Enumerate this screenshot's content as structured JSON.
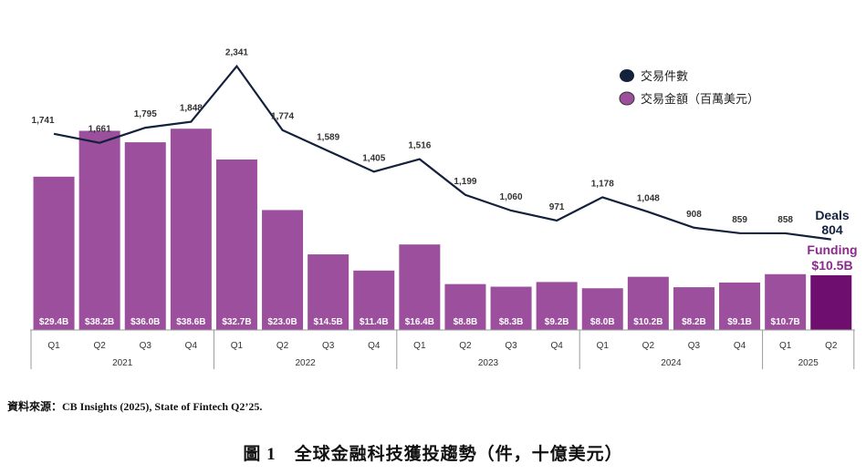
{
  "chart_data": {
    "type": "bar+line",
    "legend": {
      "position": "top-right",
      "items": [
        {
          "label": "交易件數",
          "color": "#14213d"
        },
        {
          "label": "交易金額（百萬美元）",
          "color": "#9b4f9d"
        }
      ]
    },
    "years": [
      "2021",
      "2022",
      "2023",
      "2024",
      "2025"
    ],
    "categories": [
      "Q1",
      "Q2",
      "Q3",
      "Q4",
      "Q1",
      "Q2",
      "Q3",
      "Q4",
      "Q1",
      "Q2",
      "Q3",
      "Q4",
      "Q1",
      "Q2",
      "Q3",
      "Q4",
      "Q1",
      "Q2"
    ],
    "category_years": [
      "2021",
      "2021",
      "2021",
      "2021",
      "2022",
      "2022",
      "2022",
      "2022",
      "2023",
      "2023",
      "2023",
      "2023",
      "2024",
      "2024",
      "2024",
      "2024",
      "2025",
      "2025"
    ],
    "series": [
      {
        "name": "交易金額（百萬美元）",
        "type": "bar",
        "color": "#9b4f9d",
        "highlight_color": "#6e0f6f",
        "values": [
          29.4,
          38.2,
          36.0,
          38.6,
          32.7,
          23.0,
          14.5,
          11.4,
          16.4,
          8.8,
          8.3,
          9.2,
          8.0,
          10.2,
          8.2,
          9.1,
          10.7,
          10.5
        ],
        "labels": [
          "$29.4B",
          "$38.2B",
          "$36.0B",
          "$38.6B",
          "$32.7B",
          "$23.0B",
          "$14.5B",
          "$11.4B",
          "$16.4B",
          "$8.8B",
          "$8.3B",
          "$9.2B",
          "$8.0B",
          "$10.2B",
          "$8.2B",
          "$9.1B",
          "$10.7B",
          ""
        ]
      },
      {
        "name": "交易件數",
        "type": "line",
        "color": "#14213d",
        "values": [
          1741,
          1661,
          1795,
          1848,
          2341,
          1774,
          1589,
          1405,
          1516,
          1199,
          1060,
          971,
          1178,
          1048,
          908,
          859,
          858,
          804
        ],
        "labels": [
          "1,741",
          "1,661",
          "1,795",
          "1,848",
          "2,341",
          "1,774",
          "1,589",
          "1,405",
          "1,516",
          "1,199",
          "1,060",
          "971",
          "1,178",
          "1,048",
          "908",
          "859",
          "858",
          ""
        ]
      }
    ],
    "annotations": {
      "deals_title": "Deals",
      "deals_value": "804",
      "funding_title": "Funding",
      "funding_value": "$10.5B"
    }
  },
  "source": "資料來源：CB Insights (2025), State of Fintech Q2’25.",
  "caption": "圖 1　全球金融科技獲投趨勢（件，十億美元）"
}
